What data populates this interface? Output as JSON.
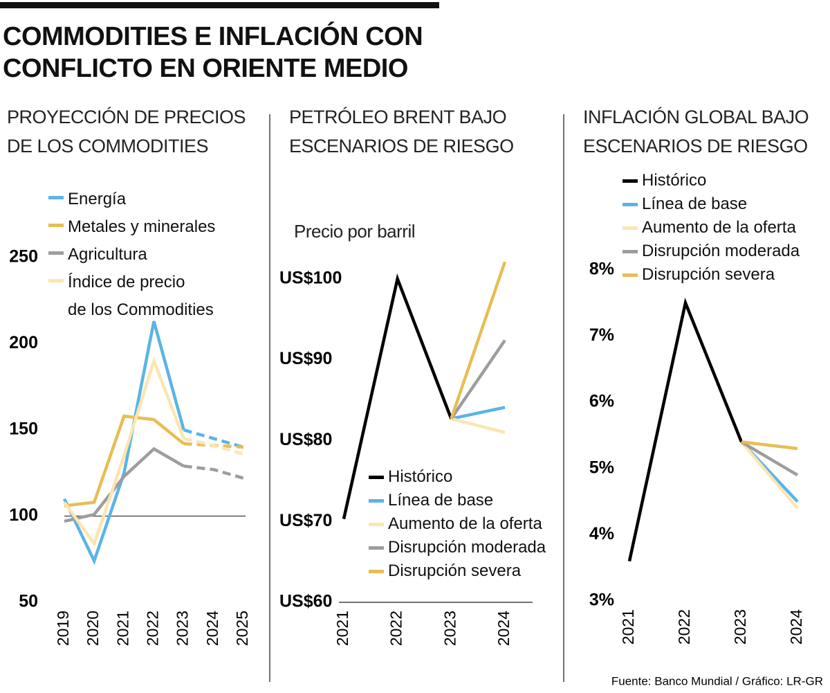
{
  "title": "COMMODITIES E INFLACIÓN CON\nCONFLICTO EN ORIENTE MEDIO",
  "source": "Fuente: Banco Mundial / Gráfico: LR-GR",
  "chart_data": [
    {
      "type": "line",
      "title": "PROYECCIÓN DE PRECIOS\nDE LOS COMMODITIES",
      "categories": [
        "2019",
        "2020",
        "2021",
        "2022",
        "2023",
        "2024",
        "2025"
      ],
      "dash_from": 4,
      "hline": 100,
      "series": [
        {
          "name": "Energía",
          "color": "#5bb4e5",
          "values": [
            110,
            74,
            125,
            213,
            150,
            145,
            140
          ]
        },
        {
          "name": "Metales y minerales",
          "color": "#e8bd55",
          "values": [
            106,
            108,
            158,
            156,
            142,
            141,
            140
          ]
        },
        {
          "name": "Agricultura",
          "color": "#9d9d9d",
          "values": [
            97,
            101,
            123,
            139,
            129,
            127,
            122
          ]
        },
        {
          "name": "Índice de precio\nde los Commodities",
          "color": "#fde5b0",
          "values": [
            108,
            84,
            135,
            190,
            145,
            141,
            136
          ]
        }
      ],
      "ylim": [
        50,
        250
      ],
      "yticks": [
        50,
        100,
        150,
        200,
        250
      ]
    },
    {
      "type": "line",
      "title": "PETRÓLEO BRENT BAJO\nESCENARIOS DE RIESGO",
      "y_label": "Precio por barril",
      "categories": [
        "2021",
        "2022",
        "2023",
        "2024"
      ],
      "series": [
        {
          "name": "Histórico",
          "color": "#000000",
          "values": [
            70.3,
            100,
            82.7,
            null
          ]
        },
        {
          "name": "Línea de base",
          "color": "#5bb4e5",
          "values": [
            null,
            null,
            82.7,
            84.1
          ]
        },
        {
          "name": "Aumento de la oferta",
          "color": "#fde5b0",
          "values": [
            null,
            null,
            82.7,
            81
          ]
        },
        {
          "name": "Disrupción moderada",
          "color": "#9d9d9d",
          "values": [
            null,
            null,
            82.7,
            92.4
          ]
        },
        {
          "name": "Disrupción severa",
          "color": "#e8bd55",
          "values": [
            null,
            null,
            82.7,
            102.1
          ]
        }
      ],
      "ylim": [
        60,
        104
      ],
      "yticks": [
        {
          "value": 60,
          "label": "US$60"
        },
        {
          "value": 70,
          "label": "US$70"
        },
        {
          "value": 80,
          "label": "US$80"
        },
        {
          "value": 90,
          "label": "US$90"
        },
        {
          "value": 100,
          "label": "US$100"
        }
      ]
    },
    {
      "type": "line",
      "title": "INFLACIÓN GLOBAL BAJO\nESCENARIOS DE RIESGO",
      "categories": [
        "2021",
        "2022",
        "2023",
        "2024"
      ],
      "series": [
        {
          "name": "Histórico",
          "color": "#000000",
          "values": [
            3.6,
            7.5,
            5.4,
            null
          ]
        },
        {
          "name": "Línea de base",
          "color": "#5bb4e5",
          "values": [
            null,
            null,
            5.4,
            4.5
          ]
        },
        {
          "name": "Aumento de la oferta",
          "color": "#fde5b0",
          "values": [
            null,
            null,
            5.4,
            4.4
          ]
        },
        {
          "name": "Disrupción moderada",
          "color": "#9d9d9d",
          "values": [
            null,
            null,
            5.4,
            4.9
          ]
        },
        {
          "name": "Disrupción severa",
          "color": "#e8bd55",
          "values": [
            null,
            null,
            5.4,
            5.3
          ]
        }
      ],
      "ylim": [
        3,
        8.3
      ],
      "yticks": [
        {
          "value": 3,
          "label": "3%"
        },
        {
          "value": 4,
          "label": "4%"
        },
        {
          "value": 5,
          "label": "5%"
        },
        {
          "value": 6,
          "label": "6%"
        },
        {
          "value": 7,
          "label": "7%"
        },
        {
          "value": 8,
          "label": "8%"
        }
      ]
    }
  ]
}
